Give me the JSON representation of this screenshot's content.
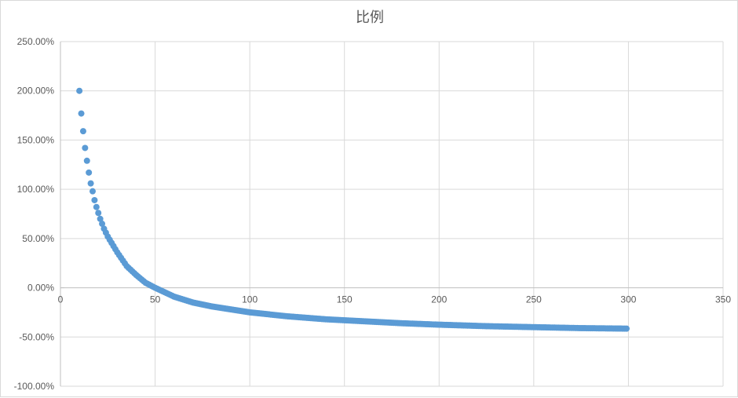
{
  "chart_data": {
    "type": "scatter",
    "title": "比例",
    "xlabel": "",
    "ylabel": "",
    "xlim": [
      0,
      350
    ],
    "ylim": [
      -1.0,
      2.5
    ],
    "x_ticks": [
      0,
      50,
      100,
      150,
      200,
      250,
      300,
      350
    ],
    "x_tick_labels": [
      "0",
      "50",
      "100",
      "150",
      "200",
      "250",
      "300",
      "350"
    ],
    "y_ticks": [
      2.5,
      2.0,
      1.5,
      1.0,
      0.5,
      0.0,
      -0.5,
      -1.0
    ],
    "y_tick_labels": [
      "250.00%",
      "200.00%",
      "150.00%",
      "100.00%",
      "50.00%",
      "0.00%",
      "-50.00%",
      "-100.00%"
    ],
    "grid": true,
    "legend": "none",
    "series": [
      {
        "color": "#5b9bd5",
        "x_range": [
          10,
          299
        ],
        "x_step": 1,
        "sample_points": [
          {
            "x": 10,
            "y": 2.0
          },
          {
            "x": 11,
            "y": 1.77
          },
          {
            "x": 12,
            "y": 1.59
          },
          {
            "x": 13,
            "y": 1.42
          },
          {
            "x": 14,
            "y": 1.29
          },
          {
            "x": 15,
            "y": 1.17
          },
          {
            "x": 16,
            "y": 1.06
          },
          {
            "x": 17,
            "y": 0.98
          },
          {
            "x": 18,
            "y": 0.89
          },
          {
            "x": 19,
            "y": 0.82
          },
          {
            "x": 20,
            "y": 0.76
          },
          {
            "x": 21,
            "y": 0.7
          },
          {
            "x": 22,
            "y": 0.65
          },
          {
            "x": 23,
            "y": 0.6
          },
          {
            "x": 24,
            "y": 0.56
          },
          {
            "x": 25,
            "y": 0.52
          },
          {
            "x": 30,
            "y": 0.36
          },
          {
            "x": 35,
            "y": 0.22
          },
          {
            "x": 40,
            "y": 0.13
          },
          {
            "x": 45,
            "y": 0.05
          },
          {
            "x": 50,
            "y": 0.0
          },
          {
            "x": 60,
            "y": -0.09
          },
          {
            "x": 70,
            "y": -0.15
          },
          {
            "x": 80,
            "y": -0.19
          },
          {
            "x": 90,
            "y": -0.22
          },
          {
            "x": 100,
            "y": -0.25
          },
          {
            "x": 120,
            "y": -0.29
          },
          {
            "x": 140,
            "y": -0.32
          },
          {
            "x": 160,
            "y": -0.34
          },
          {
            "x": 180,
            "y": -0.36
          },
          {
            "x": 200,
            "y": -0.375
          },
          {
            "x": 225,
            "y": -0.39
          },
          {
            "x": 250,
            "y": -0.4
          },
          {
            "x": 275,
            "y": -0.41
          },
          {
            "x": 299,
            "y": -0.415
          }
        ]
      }
    ]
  }
}
